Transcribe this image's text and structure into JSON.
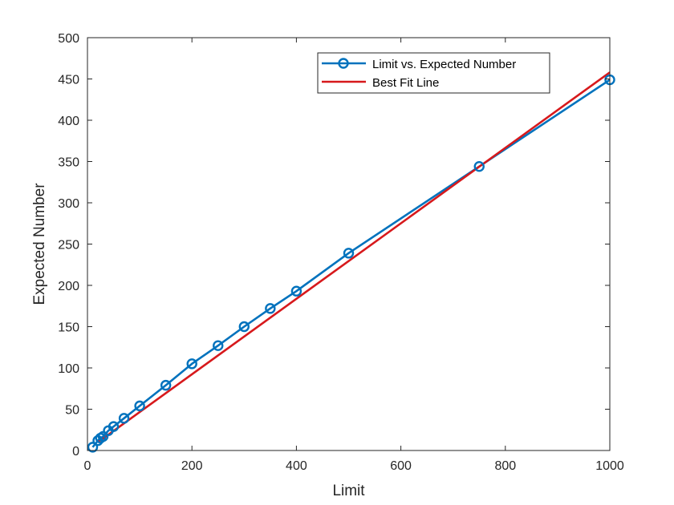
{
  "chart_data": {
    "type": "line",
    "xlabel": "Limit",
    "ylabel": "Expected Number",
    "xlim": [
      0,
      1000
    ],
    "ylim": [
      0,
      500
    ],
    "xticks": [
      0,
      200,
      400,
      600,
      800,
      1000
    ],
    "yticks": [
      0,
      50,
      100,
      150,
      200,
      250,
      300,
      350,
      400,
      450,
      500
    ],
    "grid": false,
    "legend_position": "top-right",
    "series": [
      {
        "name": "Limit vs. Expected Number",
        "color": "#0072BD",
        "marker": "circle",
        "x": [
          10,
          20,
          25,
          30,
          40,
          50,
          70,
          100,
          150,
          200,
          250,
          300,
          350,
          400,
          500,
          750,
          1000
        ],
        "y": [
          4,
          12,
          15,
          17,
          24,
          29,
          39,
          54,
          79,
          105,
          127,
          150,
          172,
          193,
          239,
          344,
          449
        ]
      },
      {
        "name": "Best Fit Line",
        "color": "#D7191C",
        "marker": "none",
        "x": [
          20,
          1000
        ],
        "y": [
          10,
          458
        ]
      }
    ]
  }
}
